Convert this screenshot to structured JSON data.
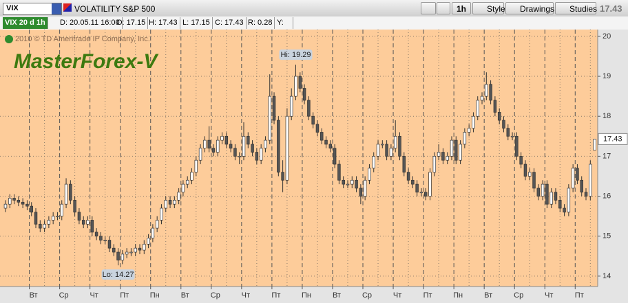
{
  "toolbar": {
    "symbol": "VIX",
    "description": "VOLATILITY S&P 500",
    "interval": "1h",
    "buttons": [
      "Style",
      "Drawings",
      "Studies"
    ],
    "last_price": "17.43"
  },
  "info_bar": {
    "study": "VIX 20 d 1h",
    "fields": [
      "D: 20.05.11 16:00",
      "O: 17.15",
      "H: 17.43",
      "L: 17.15",
      "C: 17.43",
      "R: 0.28",
      "Y:"
    ]
  },
  "chart_data": {
    "type": "candlestick",
    "copyright": "2010 © TD Ameritrade IP Company, Inc.",
    "watermark": "MasterForex-V",
    "annotations": {
      "high": "Hi: 19.29",
      "low": "Lo: 14.27"
    },
    "up_color": "#ffffff",
    "down_color": "#555555",
    "wick_color": "#333333",
    "background": "#fdcc9a",
    "grid": true,
    "ylim": [
      13.74,
      20.17
    ],
    "yticks": [
      14,
      15,
      16,
      17,
      18,
      19,
      20
    ],
    "xlim": [
      -0.95,
      136.7
    ],
    "xticks": [
      {
        "value": 5.5,
        "label": "Вт"
      },
      {
        "value": 12.5,
        "label": "Ср"
      },
      {
        "value": 19.5,
        "label": "Чт"
      },
      {
        "value": 26.5,
        "label": "Пт"
      },
      {
        "value": 33.5,
        "label": "Пн"
      },
      {
        "value": 40.5,
        "label": "Вт"
      },
      {
        "value": 47.5,
        "label": "Ср"
      },
      {
        "value": 54.5,
        "label": "Чт"
      },
      {
        "value": 61.5,
        "label": "Пт"
      },
      {
        "value": 68.5,
        "label": "Пн"
      },
      {
        "value": 75.5,
        "label": "Вт"
      },
      {
        "value": 82.5,
        "label": "Ср"
      },
      {
        "value": 89.5,
        "label": "Чт"
      },
      {
        "value": 96.5,
        "label": "Пт"
      },
      {
        "value": 103.5,
        "label": "Пн"
      },
      {
        "value": 110.5,
        "label": "Вт"
      },
      {
        "value": 117.5,
        "label": "Ср"
      },
      {
        "value": 124.5,
        "label": "Чт"
      },
      {
        "value": 131.5,
        "label": "Пт"
      }
    ],
    "open": [
      15.7,
      15.8,
      15.95,
      15.9,
      15.85,
      15.8,
      15.75,
      15.6,
      15.3,
      15.2,
      15.3,
      15.4,
      15.5,
      15.5,
      15.8,
      16.3,
      15.9,
      15.6,
      15.4,
      15.3,
      15.4,
      15.1,
      15.0,
      14.9,
      14.9,
      14.7,
      14.6,
      14.4,
      14.55,
      14.6,
      14.6,
      14.7,
      14.65,
      14.8,
      14.95,
      15.2,
      15.4,
      15.7,
      15.9,
      15.8,
      15.9,
      16.1,
      16.3,
      16.4,
      16.6,
      16.9,
      17.2,
      17.4,
      17.2,
      17.1,
      17.4,
      17.5,
      17.3,
      17.2,
      17.0,
      17.0,
      17.5,
      17.3,
      17.1,
      16.9,
      17.2,
      17.4,
      18.5,
      17.9,
      16.6,
      16.4,
      18.0,
      18.5,
      19.0,
      18.7,
      18.4,
      18.0,
      17.8,
      17.6,
      17.4,
      17.3,
      17.2,
      16.8,
      16.4,
      16.3,
      16.3,
      16.4,
      16.2,
      16.0,
      16.4,
      16.7,
      17.0,
      17.3,
      17.3,
      17.0,
      17.2,
      17.5,
      17.0,
      16.6,
      16.4,
      16.3,
      16.1,
      16.1,
      16.0,
      16.6,
      17.0,
      17.1,
      16.9,
      17.0,
      17.4,
      16.9,
      17.3,
      17.6,
      17.7,
      18.0,
      18.4,
      18.5,
      18.8,
      18.4,
      18.1,
      17.9,
      17.7,
      17.5,
      17.5,
      17.0,
      16.8,
      16.5,
      16.6,
      16.2,
      16.0,
      16.3,
      15.8,
      16.1,
      15.9,
      15.7,
      15.6,
      16.2,
      16.7,
      16.4,
      16.1,
      16.0,
      17.15
    ],
    "high": [
      15.9,
      16.05,
      16.05,
      16.0,
      15.95,
      15.9,
      15.85,
      15.7,
      15.4,
      15.4,
      15.5,
      15.6,
      15.6,
      15.9,
      16.45,
      16.4,
      16.0,
      15.7,
      15.5,
      15.5,
      15.5,
      15.2,
      15.1,
      15.0,
      15.0,
      14.8,
      14.7,
      14.65,
      14.7,
      14.7,
      14.8,
      14.8,
      14.9,
      15.05,
      15.3,
      15.5,
      15.8,
      16.0,
      16.0,
      16.0,
      16.2,
      16.4,
      16.5,
      16.7,
      17.0,
      17.3,
      17.5,
      17.75,
      17.3,
      17.5,
      17.6,
      17.6,
      17.4,
      17.3,
      17.1,
      17.85,
      17.6,
      17.4,
      17.2,
      17.3,
      17.5,
      19.05,
      18.6,
      18.0,
      16.9,
      18.2,
      18.7,
      19.29,
      19.1,
      18.8,
      18.5,
      18.1,
      17.9,
      17.7,
      17.5,
      17.4,
      17.3,
      16.9,
      16.5,
      16.4,
      16.5,
      16.5,
      16.3,
      16.5,
      16.8,
      17.1,
      17.4,
      17.4,
      17.4,
      17.3,
      17.9,
      17.6,
      17.1,
      16.7,
      16.5,
      16.4,
      16.2,
      16.2,
      16.7,
      17.1,
      17.3,
      17.2,
      17.1,
      17.5,
      17.5,
      17.4,
      17.7,
      17.8,
      18.1,
      18.5,
      18.6,
      19.1,
      18.9,
      18.5,
      18.2,
      18.0,
      17.8,
      17.6,
      17.6,
      17.1,
      16.9,
      16.7,
      16.7,
      16.3,
      16.4,
      16.4,
      16.2,
      16.2,
      16.0,
      15.8,
      16.3,
      16.8,
      16.8,
      16.5,
      16.2,
      16.9,
      17.43
    ],
    "low": [
      15.6,
      15.7,
      15.8,
      15.75,
      15.7,
      15.65,
      15.5,
      15.2,
      15.1,
      15.1,
      15.2,
      15.3,
      15.4,
      15.4,
      15.7,
      15.8,
      15.5,
      15.3,
      15.2,
      15.2,
      15.0,
      14.9,
      14.8,
      14.8,
      14.6,
      14.5,
      14.27,
      14.3,
      14.45,
      14.5,
      14.5,
      14.55,
      14.55,
      14.7,
      14.85,
      15.1,
      15.3,
      15.6,
      15.7,
      15.7,
      15.8,
      16.0,
      16.2,
      16.3,
      16.5,
      16.8,
      17.1,
      17.1,
      17.0,
      17.0,
      17.3,
      17.2,
      17.1,
      16.9,
      16.8,
      16.9,
      17.2,
      17.0,
      16.8,
      16.8,
      17.1,
      17.3,
      17.8,
      16.5,
      16.1,
      16.3,
      17.9,
      18.4,
      18.6,
      18.3,
      17.9,
      17.7,
      17.5,
      17.3,
      17.2,
      17.1,
      16.7,
      16.3,
      16.2,
      16.2,
      16.2,
      16.1,
      15.8,
      15.9,
      16.3,
      16.6,
      16.9,
      17.2,
      16.9,
      16.9,
      17.1,
      16.9,
      16.5,
      16.3,
      16.2,
      16.0,
      16.0,
      15.9,
      15.9,
      16.5,
      16.9,
      16.8,
      16.8,
      16.9,
      16.8,
      16.8,
      17.2,
      17.5,
      17.6,
      17.9,
      18.3,
      18.4,
      18.3,
      18.0,
      17.8,
      17.6,
      17.4,
      17.4,
      16.9,
      16.7,
      16.4,
      16.4,
      16.1,
      15.9,
      15.9,
      15.7,
      15.7,
      15.8,
      15.6,
      15.5,
      15.5,
      16.1,
      16.3,
      16.0,
      15.9,
      15.9,
      17.15
    ],
    "close": [
      15.8,
      15.95,
      15.9,
      15.85,
      15.8,
      15.75,
      15.6,
      15.3,
      15.2,
      15.3,
      15.4,
      15.5,
      15.5,
      15.8,
      16.3,
      15.9,
      15.6,
      15.4,
      15.3,
      15.4,
      15.1,
      15.0,
      14.9,
      14.9,
      14.7,
      14.6,
      14.4,
      14.55,
      14.6,
      14.6,
      14.7,
      14.65,
      14.8,
      14.95,
      15.2,
      15.4,
      15.7,
      15.9,
      15.8,
      15.9,
      16.1,
      16.3,
      16.4,
      16.6,
      16.9,
      17.2,
      17.4,
      17.2,
      17.1,
      17.4,
      17.5,
      17.3,
      17.2,
      17.0,
      17.0,
      17.5,
      17.3,
      17.1,
      16.9,
      17.2,
      17.4,
      18.5,
      17.9,
      16.6,
      16.4,
      18.0,
      18.5,
      19.0,
      18.7,
      18.4,
      18.0,
      17.8,
      17.6,
      17.4,
      17.3,
      17.2,
      16.8,
      16.4,
      16.3,
      16.3,
      16.4,
      16.2,
      16.0,
      16.4,
      16.7,
      17.0,
      17.3,
      17.3,
      17.0,
      17.2,
      17.5,
      17.0,
      16.6,
      16.4,
      16.3,
      16.1,
      16.1,
      16.0,
      16.6,
      17.0,
      17.1,
      16.9,
      17.0,
      17.4,
      16.9,
      17.3,
      17.6,
      17.7,
      18.0,
      18.4,
      18.5,
      18.8,
      18.4,
      18.1,
      17.9,
      17.7,
      17.5,
      17.5,
      17.0,
      16.8,
      16.5,
      16.6,
      16.2,
      16.0,
      16.3,
      15.8,
      16.1,
      15.9,
      15.7,
      15.6,
      16.2,
      16.7,
      16.4,
      16.1,
      16.0,
      16.8,
      17.43
    ]
  }
}
